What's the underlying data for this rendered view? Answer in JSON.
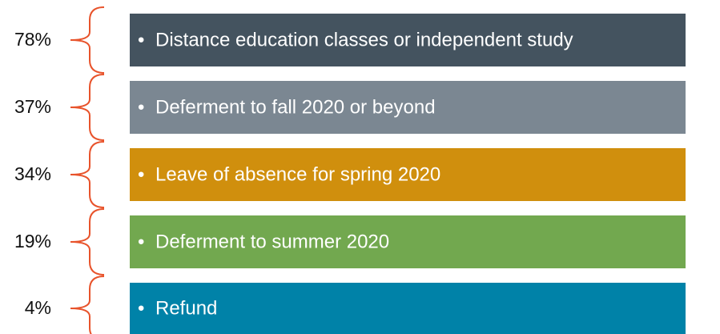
{
  "items": [
    {
      "percent": "78%",
      "text": "Distance education classes or independent study",
      "color": "#44535f"
    },
    {
      "percent": "37%",
      "text": "Deferment to fall 2020 or beyond",
      "color": "#7b8792"
    },
    {
      "percent": "34%",
      "text": "Leave of absence for spring 2020",
      "color": "#d08f0d"
    },
    {
      "percent": "19%",
      "text": "Deferment to summer 2020",
      "color": "#72a84f"
    },
    {
      "percent": "4%",
      "text": "Refund",
      "color": "#0082a8"
    }
  ]
}
